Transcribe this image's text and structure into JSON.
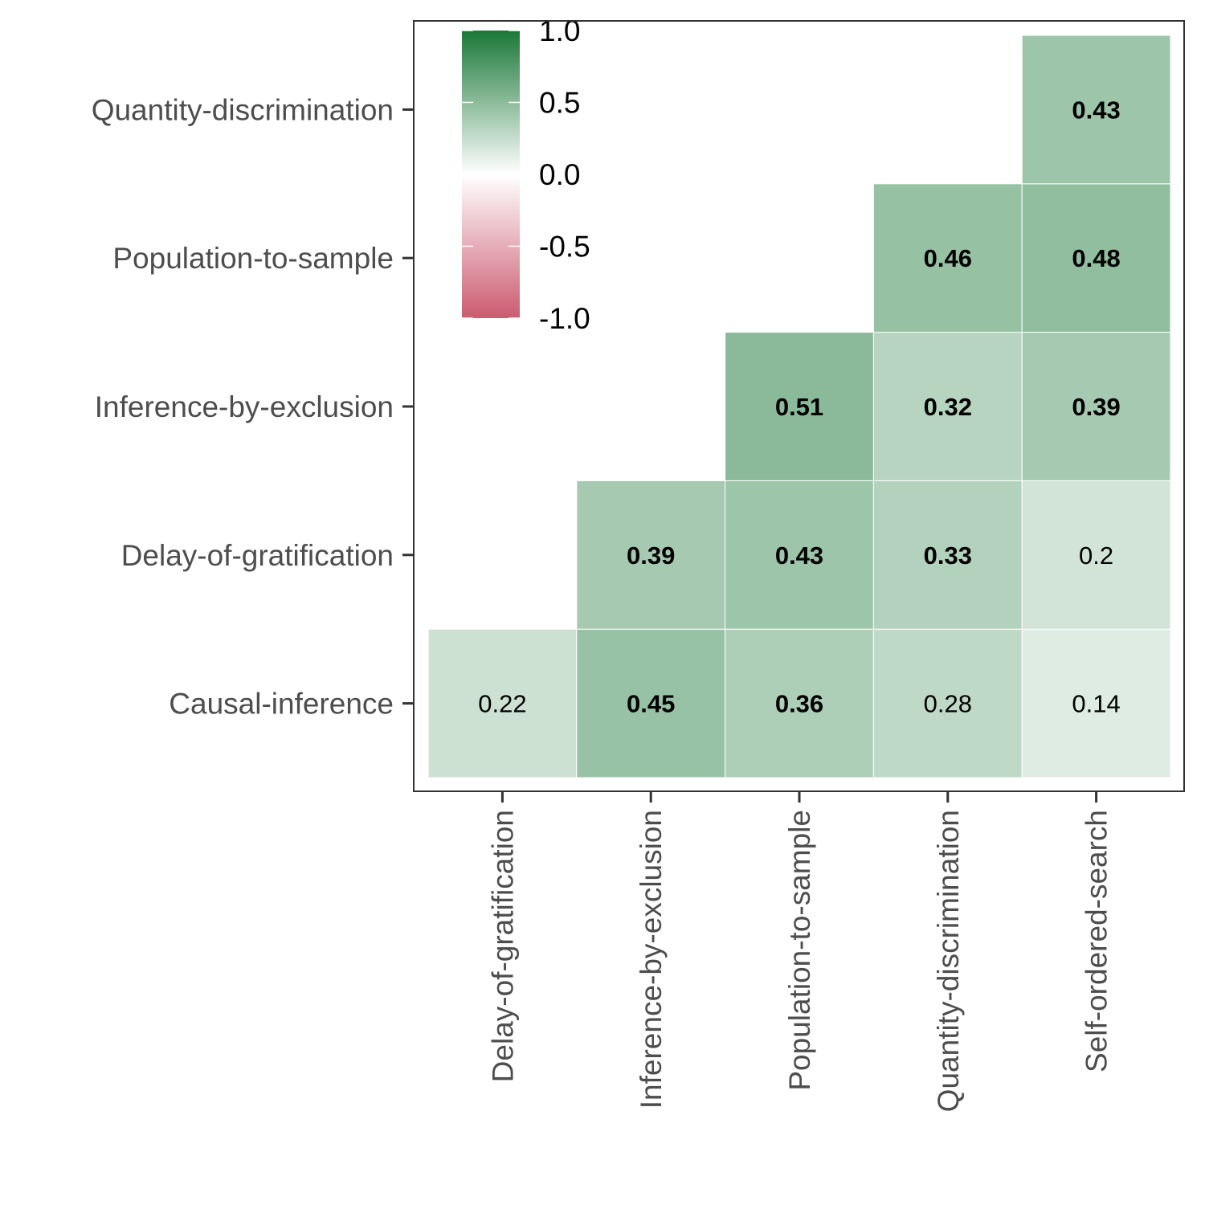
{
  "chart_data": {
    "type": "heatmap",
    "title": "",
    "xlabel": "",
    "ylabel": "",
    "x_categories": [
      "Delay-of-gratification",
      "Inference-by-exclusion",
      "Population-to-sample",
      "Quantity-discrimination",
      "Self-ordered-search"
    ],
    "y_categories": [
      "Causal-inference",
      "Delay-of-gratification",
      "Inference-by-exclusion",
      "Population-to-sample",
      "Quantity-discrimination"
    ],
    "cells": [
      {
        "x": "Delay-of-gratification",
        "y": "Causal-inference",
        "value": 0.22,
        "label": "0.22",
        "bold": false
      },
      {
        "x": "Inference-by-exclusion",
        "y": "Causal-inference",
        "value": 0.45,
        "label": "0.45",
        "bold": true
      },
      {
        "x": "Population-to-sample",
        "y": "Causal-inference",
        "value": 0.36,
        "label": "0.36",
        "bold": true
      },
      {
        "x": "Quantity-discrimination",
        "y": "Causal-inference",
        "value": 0.28,
        "label": "0.28",
        "bold": false
      },
      {
        "x": "Self-ordered-search",
        "y": "Causal-inference",
        "value": 0.14,
        "label": "0.14",
        "bold": false
      },
      {
        "x": "Inference-by-exclusion",
        "y": "Delay-of-gratification",
        "value": 0.39,
        "label": "0.39",
        "bold": true
      },
      {
        "x": "Population-to-sample",
        "y": "Delay-of-gratification",
        "value": 0.43,
        "label": "0.43",
        "bold": true
      },
      {
        "x": "Quantity-discrimination",
        "y": "Delay-of-gratification",
        "value": 0.33,
        "label": "0.33",
        "bold": true
      },
      {
        "x": "Self-ordered-search",
        "y": "Delay-of-gratification",
        "value": 0.2,
        "label": "0.2",
        "bold": false
      },
      {
        "x": "Population-to-sample",
        "y": "Inference-by-exclusion",
        "value": 0.51,
        "label": "0.51",
        "bold": true
      },
      {
        "x": "Quantity-discrimination",
        "y": "Inference-by-exclusion",
        "value": 0.32,
        "label": "0.32",
        "bold": true
      },
      {
        "x": "Self-ordered-search",
        "y": "Inference-by-exclusion",
        "value": 0.39,
        "label": "0.39",
        "bold": true
      },
      {
        "x": "Quantity-discrimination",
        "y": "Population-to-sample",
        "value": 0.46,
        "label": "0.46",
        "bold": true
      },
      {
        "x": "Self-ordered-search",
        "y": "Population-to-sample",
        "value": 0.48,
        "label": "0.48",
        "bold": true
      },
      {
        "x": "Self-ordered-search",
        "y": "Quantity-discrimination",
        "value": 0.43,
        "label": "0.43",
        "bold": true
      }
    ],
    "color_scale": {
      "range": [
        -1,
        1
      ],
      "low": "#cc5b70",
      "mid": "#ffffff",
      "high": "#1a7837",
      "ticks": [
        "1.0",
        "0.5",
        "0.0",
        "-0.5",
        "-1.0"
      ],
      "tick_values": [
        1,
        0.5,
        0,
        -0.5,
        -1
      ]
    },
    "legend_position": "top-left inside",
    "grid": false
  }
}
